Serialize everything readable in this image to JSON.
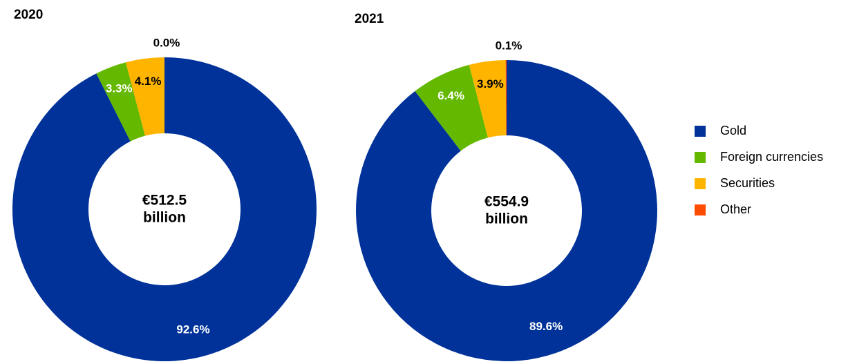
{
  "chart_data": {
    "type": "donut",
    "categories": [
      "Gold",
      "Foreign currencies",
      "Securities",
      "Other"
    ],
    "colors": [
      "#003299",
      "#65b800",
      "#ffb400",
      "#ff4b00"
    ],
    "label_colors": [
      "#ffffff",
      "#ffffff",
      "#000000",
      "#000000"
    ],
    "series": [
      {
        "name": "2020",
        "values": [
          92.6,
          3.3,
          4.1,
          0.0
        ],
        "value_labels": [
          "92.6%",
          "3.3%",
          "4.1%",
          "0.0%"
        ],
        "center_text": [
          "€512.5",
          "billion"
        ]
      },
      {
        "name": "2021",
        "values": [
          89.6,
          6.4,
          3.9,
          0.1
        ],
        "value_labels": [
          "89.6%",
          "6.4%",
          "3.9%",
          "0.1%"
        ],
        "center_text": [
          "€554.9",
          "billion"
        ]
      }
    ],
    "legend": "right"
  }
}
